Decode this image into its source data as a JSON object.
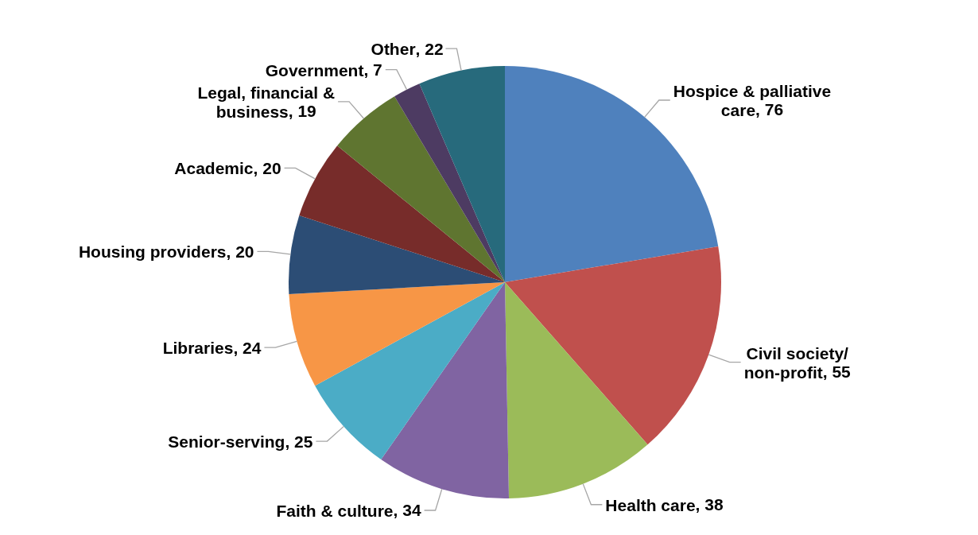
{
  "chart_data": {
    "type": "pie",
    "categories": [
      "Hospice & palliative care",
      "Civil society/ non-profit",
      "Health care",
      "Faith & culture",
      "Senior-serving",
      "Libraries",
      "Housing providers",
      "Academic",
      "Legal, financial & business",
      "Government",
      "Other"
    ],
    "values": [
      76,
      55,
      38,
      34,
      25,
      24,
      20,
      20,
      19,
      7,
      22
    ],
    "colors": [
      "#4f81bd",
      "#c0504d",
      "#9bbb59",
      "#8064a2",
      "#4bacc6",
      "#f79646",
      "#2c4d75",
      "#772c2a",
      "#5f7530",
      "#4d3b62",
      "#276a7c"
    ],
    "value_labels": [
      ", 76",
      ", 55",
      ", 38",
      ", 34",
      ", 25",
      ", 24",
      ", 20",
      ", 20",
      ", 19",
      ", 7",
      ", 22"
    ],
    "legend": false
  }
}
